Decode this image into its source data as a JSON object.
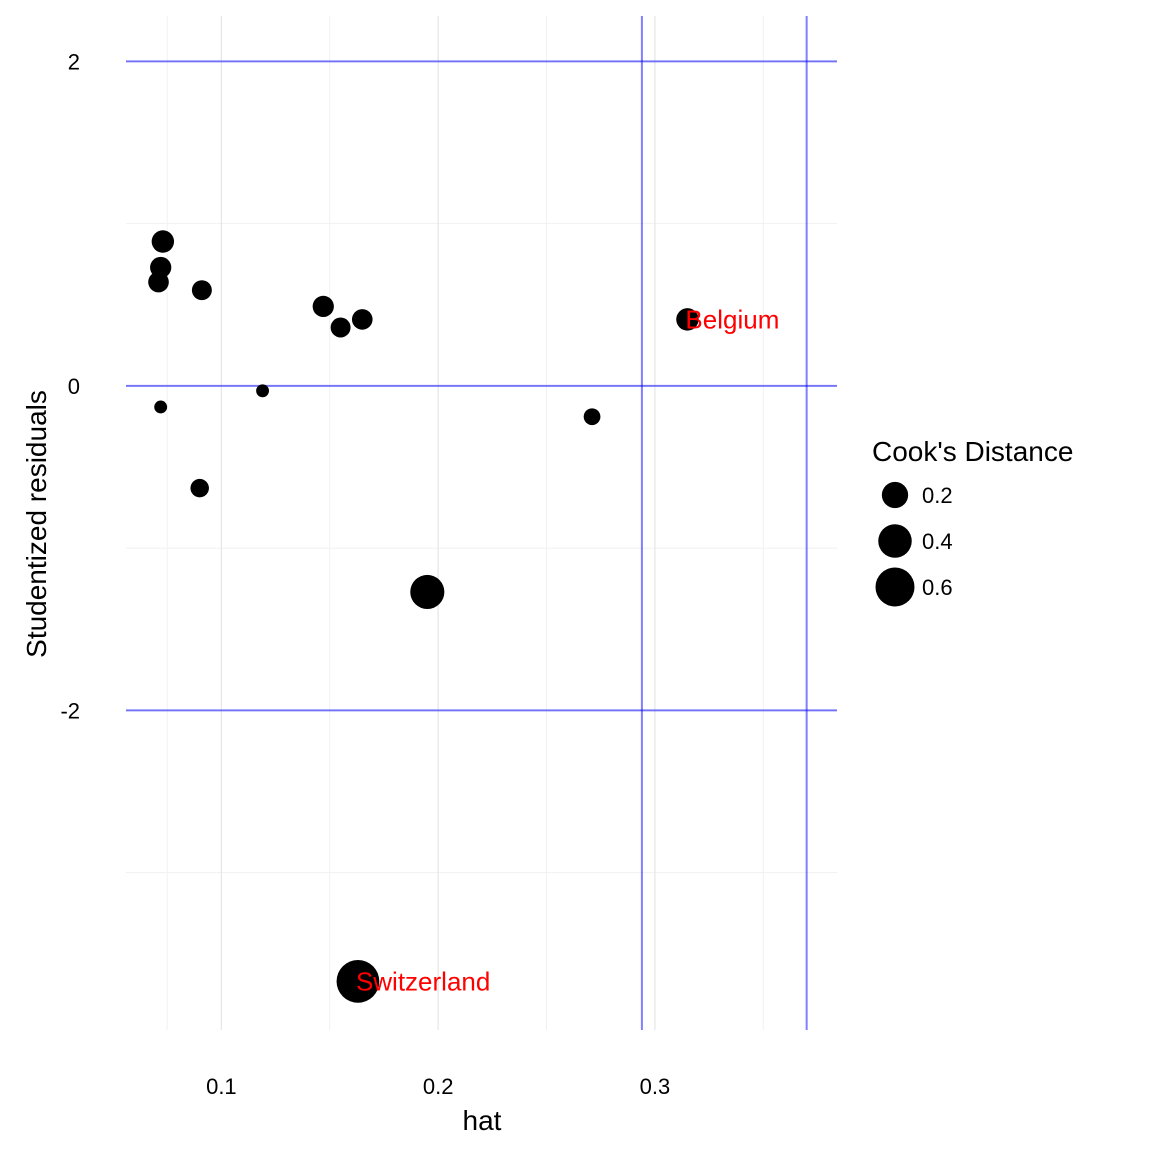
{
  "chart_data": {
    "type": "scatter",
    "xlabel": "hat",
    "ylabel": "Studentized residuals",
    "xlim": [
      0.056,
      0.384
    ],
    "ylim": [
      -3.97,
      2.28
    ],
    "x_ticks": [
      0.1,
      0.2,
      0.3
    ],
    "x_tick_labels": [
      "0.1",
      "0.2",
      "0.3"
    ],
    "y_ticks": [
      2,
      0,
      -2
    ],
    "y_tick_labels": [
      "2",
      "0",
      "-2"
    ],
    "x_minor_gridlines": [
      0.075,
      0.15,
      0.25,
      0.35
    ],
    "y_minor_gridlines": [
      1,
      -1,
      -3
    ],
    "grid": true,
    "reference_lines": {
      "color": "#0000ff",
      "horizontal": [
        -2,
        0,
        2
      ],
      "vertical": [
        0.294,
        0.37
      ]
    },
    "points": [
      {
        "x": 0.073,
        "y": 0.89,
        "cook": 0.12
      },
      {
        "x": 0.072,
        "y": 0.73,
        "cook": 0.1
      },
      {
        "x": 0.071,
        "y": 0.64,
        "cook": 0.09
      },
      {
        "x": 0.091,
        "y": 0.59,
        "cook": 0.08
      },
      {
        "x": 0.147,
        "y": 0.49,
        "cook": 0.1
      },
      {
        "x": 0.165,
        "y": 0.41,
        "cook": 0.09
      },
      {
        "x": 0.155,
        "y": 0.36,
        "cook": 0.08
      },
      {
        "x": 0.315,
        "y": 0.41,
        "cook": 0.12,
        "label": "Belgium"
      },
      {
        "x": 0.119,
        "y": -0.03,
        "cook": 0.01
      },
      {
        "x": 0.072,
        "y": -0.13,
        "cook": 0.01
      },
      {
        "x": 0.271,
        "y": -0.19,
        "cook": 0.04
      },
      {
        "x": 0.09,
        "y": -0.63,
        "cook": 0.06
      },
      {
        "x": 0.195,
        "y": -1.27,
        "cook": 0.42
      },
      {
        "x": 0.163,
        "y": -3.67,
        "cook": 0.76,
        "label": "Switzerland"
      }
    ],
    "point_color": "#000000",
    "label_color": "#ff0000",
    "size_legend": {
      "title": "Cook's Distance",
      "position": "right",
      "entries": [
        {
          "value": 0.2,
          "label": "0.2"
        },
        {
          "value": 0.4,
          "label": "0.4"
        },
        {
          "value": 0.6,
          "label": "0.6"
        }
      ]
    }
  }
}
